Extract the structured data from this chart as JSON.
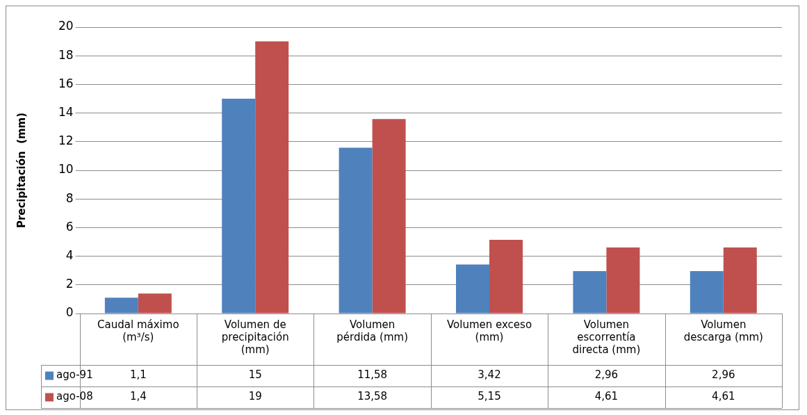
{
  "chart_data": {
    "type": "bar",
    "ylabel": "Precipitación  (mm)",
    "categories": [
      "Caudal máximo (m³/s)",
      "Volumen de precipitación (mm)",
      "Volumen pérdida (mm)",
      "Volumen exceso (mm)",
      "Volumen escorrentía directa (mm)",
      "Volumen descarga (mm)"
    ],
    "series": [
      {
        "name": "ago-91",
        "color": "#4f81bd",
        "values": [
          1.1,
          15,
          11.58,
          3.42,
          2.96,
          2.96
        ],
        "value_labels": [
          "1,1",
          "15",
          "11,58",
          "3,42",
          "2,96",
          "2,96"
        ]
      },
      {
        "name": "ago-08",
        "color": "#c0504d",
        "values": [
          1.4,
          19,
          13.58,
          5.15,
          4.61,
          4.61
        ],
        "value_labels": [
          "1,4",
          "19",
          "13,58",
          "5,15",
          "4,61",
          "4,61"
        ]
      }
    ],
    "ylim": [
      0,
      20
    ],
    "yticks": [
      0,
      2,
      4,
      6,
      8,
      10,
      12,
      14,
      16,
      18,
      20
    ],
    "grid": "y",
    "legend": "bottom"
  }
}
